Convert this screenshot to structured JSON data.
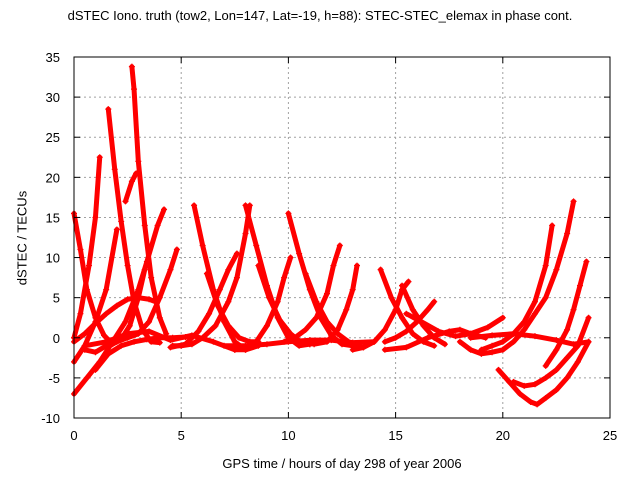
{
  "chart_data": {
    "type": "scatter",
    "title": "dSTEC Iono. truth (tow2, Lon=147, Lat=-19, h=88): STEC-STEC_elemax in phase cont.",
    "xlabel": "GPS time / hours of day 298 of year 2006",
    "ylabel": "dSTEC  / TECUs",
    "xlim": [
      0,
      25
    ],
    "ylim": [
      -10,
      35
    ],
    "xticks": [
      0,
      5,
      10,
      15,
      20,
      25
    ],
    "yticks": [
      -10,
      -5,
      0,
      5,
      10,
      15,
      20,
      25,
      30,
      35
    ],
    "grid": true,
    "marker": "+",
    "series_color": "#ff0000",
    "series": [
      {
        "x": [
          0.0,
          0.3,
          0.7,
          1.0,
          1.2
        ],
        "y": [
          0.0,
          3.0,
          9.0,
          15.0,
          22.5
        ]
      },
      {
        "x": [
          0.0,
          0.3,
          0.6,
          1.0,
          1.4,
          1.8,
          2.2,
          2.6,
          3.0,
          3.3
        ],
        "y": [
          15.5,
          11.0,
          6.0,
          2.5,
          0.3,
          -0.8,
          -0.2,
          1.5,
          5.0,
          8.5
        ]
      },
      {
        "x": [
          0.0,
          0.5,
          1.0,
          1.5,
          2.0
        ],
        "y": [
          -3.0,
          -1.0,
          2.0,
          6.0,
          13.5
        ]
      },
      {
        "x": [
          1.6,
          1.9,
          2.2,
          2.5,
          2.8,
          3.2,
          3.6,
          4.0
        ],
        "y": [
          28.5,
          21.0,
          14.5,
          9.0,
          4.5,
          1.0,
          -0.5,
          -0.6
        ]
      },
      {
        "x": [
          2.7,
          2.8,
          3.0,
          3.3,
          3.6,
          4.0,
          4.3
        ],
        "y": [
          33.8,
          31.0,
          22.0,
          14.0,
          7.5,
          2.5,
          0.5
        ]
      },
      {
        "x": [
          2.4,
          2.7,
          2.9
        ],
        "y": [
          17.0,
          19.5,
          20.5
        ]
      },
      {
        "x": [
          0.0,
          0.6,
          1.2,
          1.8,
          2.4,
          3.0,
          3.4,
          3.9,
          4.2
        ],
        "y": [
          -7.0,
          -5.0,
          -3.0,
          -0.5,
          2.0,
          6.0,
          9.5,
          14.0,
          16.0
        ]
      },
      {
        "x": [
          0.0,
          0.5,
          1.0,
          1.5,
          2.0,
          2.5,
          3.0,
          3.5,
          3.8
        ],
        "y": [
          -0.5,
          0.5,
          1.8,
          3.0,
          4.0,
          4.8,
          5.0,
          4.8,
          4.5
        ]
      },
      {
        "x": [
          0.5,
          1.0,
          1.5,
          2.0,
          2.5,
          3.0,
          3.5,
          4.0,
          4.5,
          4.8
        ],
        "y": [
          -1.5,
          -1.8,
          -1.0,
          -0.5,
          0.0,
          0.5,
          2.0,
          5.0,
          8.5,
          11.0
        ]
      },
      {
        "x": [
          1.0,
          1.6,
          2.2,
          2.8,
          3.4,
          4.0,
          4.6,
          5.2
        ],
        "y": [
          -4.0,
          -2.0,
          -1.0,
          -0.5,
          -0.2,
          0.0,
          0.0,
          0.1
        ]
      },
      {
        "x": [
          0.5,
          1.5,
          2.5,
          3.5,
          4.5,
          5.5,
          6.5,
          7.5
        ],
        "y": [
          -1.0,
          -0.5,
          0.5,
          0.8,
          -0.3,
          0.3,
          -0.5,
          -1.5
        ]
      },
      {
        "x": [
          5.6,
          6.0,
          6.5,
          7.0,
          7.5,
          8.0,
          8.6
        ],
        "y": [
          16.5,
          11.5,
          6.0,
          2.0,
          -0.5,
          -1.5,
          -1.0
        ]
      },
      {
        "x": [
          6.2,
          6.7,
          7.2,
          7.7,
          8.2,
          8.6
        ],
        "y": [
          8.0,
          4.0,
          1.5,
          0.0,
          -0.5,
          -0.5
        ]
      },
      {
        "x": [
          4.6,
          5.0,
          5.5,
          6.0,
          6.6,
          7.2,
          7.6,
          8.0,
          8.2
        ],
        "y": [
          -1.0,
          -1.0,
          -0.8,
          0.0,
          1.5,
          4.5,
          7.5,
          13.0,
          16.5
        ]
      },
      {
        "x": [
          4.5,
          5.2,
          5.8,
          6.3,
          6.8,
          7.2,
          7.6
        ],
        "y": [
          -1.2,
          -0.8,
          0.8,
          3.0,
          6.0,
          8.5,
          10.5
        ]
      },
      {
        "x": [
          8.0,
          8.5,
          9.0,
          9.5,
          10.0,
          10.5,
          11.0,
          11.3
        ],
        "y": [
          16.5,
          11.5,
          6.5,
          2.5,
          0.0,
          -1.0,
          -0.8,
          -0.5
        ]
      },
      {
        "x": [
          8.6,
          9.1,
          9.6,
          10.1,
          10.6,
          11.0
        ],
        "y": [
          9.0,
          5.0,
          2.2,
          0.5,
          -0.6,
          -0.8
        ]
      },
      {
        "x": [
          7.5,
          8.0,
          8.5,
          9.0,
          9.5,
          9.8,
          10.1
        ],
        "y": [
          -1.5,
          -1.5,
          -0.5,
          1.5,
          4.5,
          7.5,
          10.0
        ]
      },
      {
        "x": [
          10.0,
          10.5,
          11.0,
          11.5,
          12.0,
          12.5,
          13.0
        ],
        "y": [
          15.5,
          10.5,
          6.0,
          2.5,
          0.3,
          -0.8,
          -1.0
        ]
      },
      {
        "x": [
          10.8,
          11.3,
          11.8,
          12.3,
          12.8,
          13.2,
          13.5
        ],
        "y": [
          8.0,
          4.5,
          2.0,
          0.5,
          -0.5,
          -1.0,
          -1.2
        ]
      },
      {
        "x": [
          9.8,
          10.3,
          10.8,
          11.3,
          11.8,
          12.1,
          12.4
        ],
        "y": [
          -0.5,
          0.0,
          1.0,
          2.5,
          5.5,
          9.0,
          11.5
        ]
      },
      {
        "x": [
          10.5,
          11.2,
          11.8,
          12.3,
          12.7,
          13.0,
          13.2
        ],
        "y": [
          -0.5,
          -0.8,
          -0.5,
          1.0,
          3.5,
          6.0,
          9.0
        ]
      },
      {
        "x": [
          7.0,
          8.0,
          9.0,
          10.0,
          11.0,
          12.0,
          13.0,
          14.0
        ],
        "y": [
          -1.0,
          -1.0,
          -0.8,
          -0.5,
          -0.3,
          -0.3,
          -0.6,
          -0.5
        ]
      },
      {
        "x": [
          14.3,
          14.8,
          15.3,
          15.8,
          16.3,
          16.8
        ],
        "y": [
          8.5,
          5.0,
          2.5,
          0.5,
          -0.5,
          -1.0
        ]
      },
      {
        "x": [
          15.3,
          15.8,
          16.3,
          16.8,
          17.3
        ],
        "y": [
          6.5,
          3.5,
          1.5,
          0.0,
          -0.8
        ]
      },
      {
        "x": [
          13.0,
          13.5,
          14.0,
          14.5,
          15.0,
          15.3,
          15.6
        ],
        "y": [
          -1.5,
          -1.2,
          -0.5,
          1.0,
          3.5,
          6.0,
          7.0
        ]
      },
      {
        "x": [
          14.5,
          15.0,
          15.5,
          16.0,
          16.5,
          16.8
        ],
        "y": [
          -0.5,
          0.0,
          0.8,
          2.0,
          3.5,
          4.5
        ]
      },
      {
        "x": [
          15.5,
          16.2,
          17.0,
          17.8,
          18.5,
          19.3,
          20.0
        ],
        "y": [
          3.0,
          2.0,
          0.8,
          0.2,
          0.5,
          1.3,
          2.5
        ]
      },
      {
        "x": [
          14.5,
          15.5,
          16.5,
          17.5,
          18.0,
          18.5,
          19.2
        ],
        "y": [
          -1.5,
          -1.2,
          0.0,
          0.8,
          1.0,
          0.5,
          0.0
        ]
      },
      {
        "x": [
          18.0,
          18.5,
          19.0,
          19.5,
          20.0,
          20.5,
          21.0,
          21.5,
          22.0,
          22.5,
          23.0,
          23.3
        ],
        "y": [
          -0.5,
          -1.5,
          -2.0,
          -1.8,
          -1.5,
          -0.5,
          1.0,
          3.0,
          5.0,
          8.5,
          13.0,
          17.0
        ]
      },
      {
        "x": [
          19.0,
          19.5,
          20.0,
          20.5,
          21.0,
          21.5,
          22.0,
          22.3
        ],
        "y": [
          -1.5,
          -1.0,
          -0.5,
          0.5,
          2.0,
          4.5,
          9.0,
          14.0
        ]
      },
      {
        "x": [
          19.8,
          20.3,
          20.8,
          21.3,
          21.6,
          22.0,
          22.5,
          23.0,
          23.5,
          24.0
        ],
        "y": [
          -4.0,
          -5.5,
          -7.0,
          -8.0,
          -8.3,
          -7.5,
          -6.5,
          -5.0,
          -3.0,
          -0.5
        ]
      },
      {
        "x": [
          20.5,
          21.0,
          21.5,
          22.0,
          22.5,
          23.0,
          23.5,
          24.0
        ],
        "y": [
          -5.5,
          -6.0,
          -5.8,
          -5.0,
          -4.0,
          -2.5,
          -1.0,
          2.5
        ]
      },
      {
        "x": [
          22.0,
          22.5,
          23.0,
          23.3,
          23.6,
          23.9
        ],
        "y": [
          -3.5,
          -1.5,
          1.0,
          3.5,
          6.5,
          9.5
        ]
      },
      {
        "x": [
          18.5,
          19.5,
          20.5,
          21.5,
          22.5,
          23.3,
          24.0
        ],
        "y": [
          0.0,
          0.3,
          0.5,
          0.2,
          -0.3,
          -0.8,
          -0.5
        ]
      }
    ]
  }
}
